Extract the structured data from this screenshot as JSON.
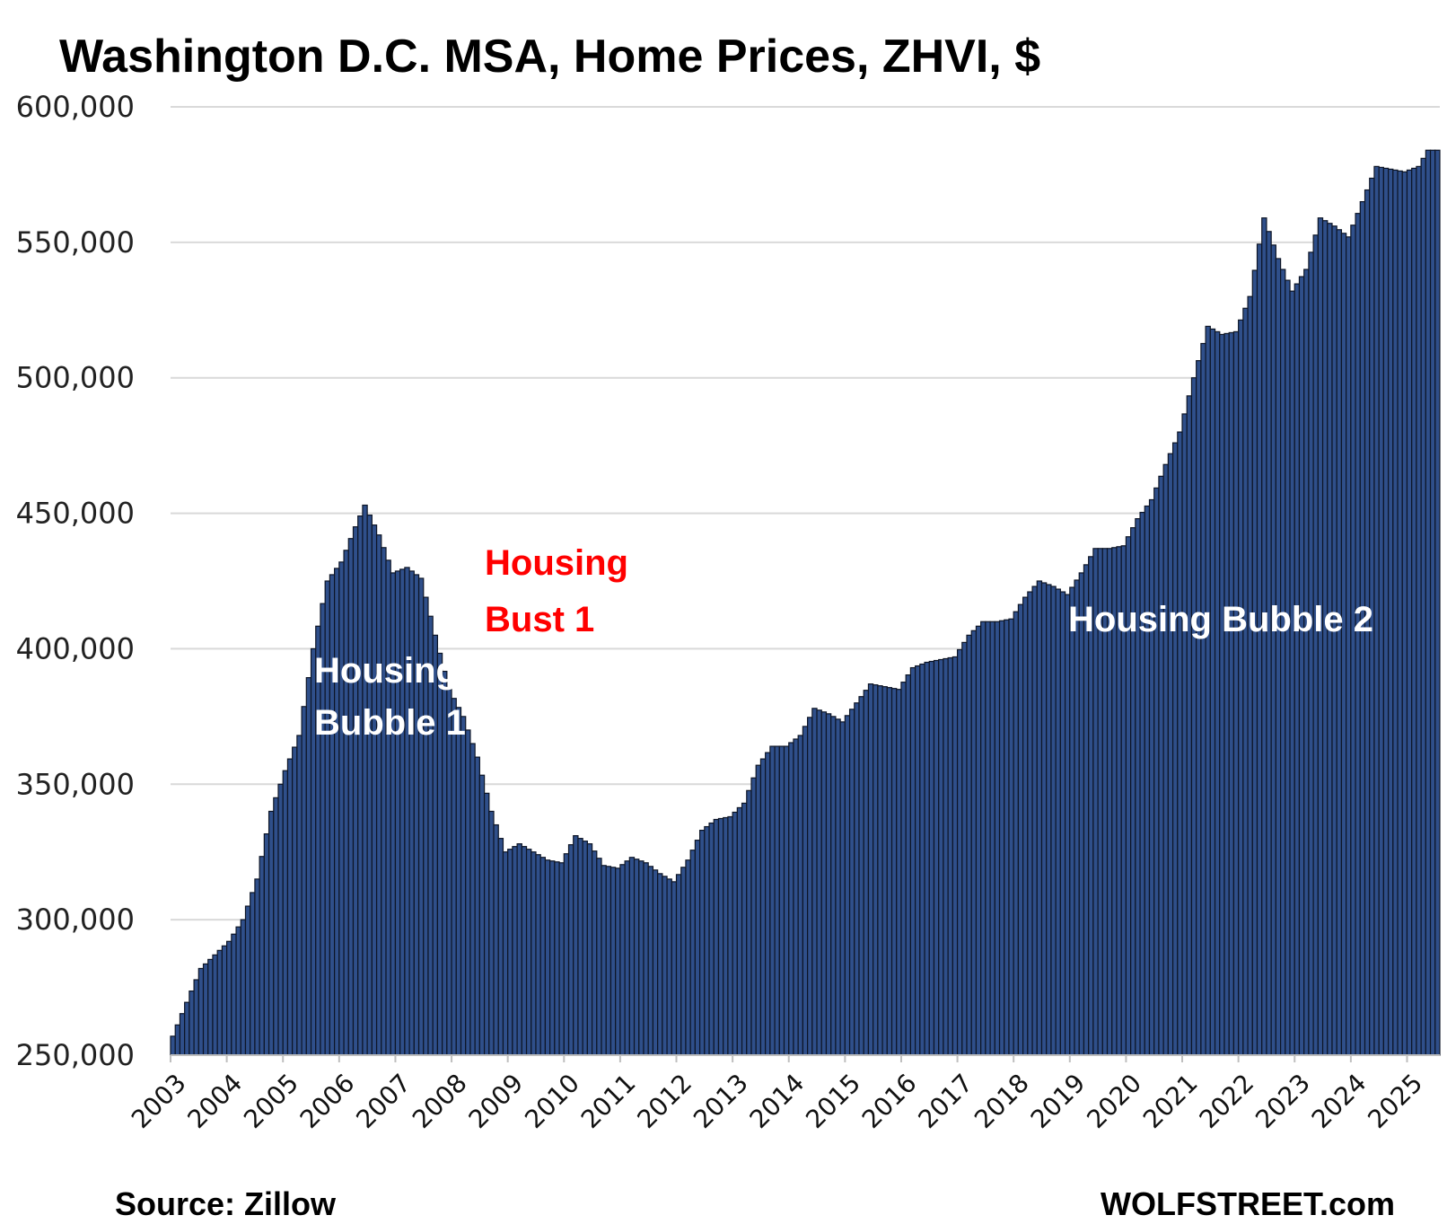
{
  "chart_data": {
    "type": "bar",
    "title": "Washington D.C. MSA, Home Prices, ZHVI, $",
    "ylim": [
      250000,
      600000
    ],
    "y_ticks": [
      250000,
      300000,
      350000,
      400000,
      450000,
      500000,
      550000,
      600000
    ],
    "y_tick_labels": [
      "250,000",
      "300,000",
      "350,000",
      "400,000",
      "450,000",
      "500,000",
      "550,000",
      "600,000"
    ],
    "x_tick_labels": [
      "2003",
      "2004",
      "2005",
      "2006",
      "2007",
      "2008",
      "2009",
      "2010",
      "2011",
      "2012",
      "2013",
      "2014",
      "2015",
      "2016",
      "2017",
      "2018",
      "2019",
      "2020",
      "2021",
      "2022",
      "2023",
      "2024",
      "2025"
    ],
    "grid": true,
    "bar_color": "#2f4f8a",
    "frequency": "monthly",
    "start": "2003-01",
    "end": "2025-07",
    "anchors": [
      [
        "2003-01",
        257000
      ],
      [
        "2003-07",
        282000
      ],
      [
        "2004-01",
        292000
      ],
      [
        "2004-04",
        300000
      ],
      [
        "2004-07",
        315000
      ],
      [
        "2004-10",
        340000
      ],
      [
        "2005-01",
        355000
      ],
      [
        "2005-04",
        368000
      ],
      [
        "2005-07",
        400000
      ],
      [
        "2005-10",
        425000
      ],
      [
        "2006-01",
        432000
      ],
      [
        "2006-04",
        445000
      ],
      [
        "2006-06",
        453000
      ],
      [
        "2006-09",
        442000
      ],
      [
        "2006-12",
        428000
      ],
      [
        "2007-03",
        430000
      ],
      [
        "2007-06",
        426000
      ],
      [
        "2007-09",
        405000
      ],
      [
        "2007-12",
        385000
      ],
      [
        "2008-03",
        375000
      ],
      [
        "2008-06",
        360000
      ],
      [
        "2008-09",
        340000
      ],
      [
        "2008-12",
        325000
      ],
      [
        "2009-03",
        328000
      ],
      [
        "2009-06",
        325000
      ],
      [
        "2009-09",
        322000
      ],
      [
        "2009-12",
        321000
      ],
      [
        "2010-03",
        331000
      ],
      [
        "2010-06",
        328000
      ],
      [
        "2010-09",
        320000
      ],
      [
        "2010-12",
        319000
      ],
      [
        "2011-03",
        323000
      ],
      [
        "2011-06",
        321000
      ],
      [
        "2011-09",
        317000
      ],
      [
        "2011-12",
        314000
      ],
      [
        "2012-03",
        322000
      ],
      [
        "2012-06",
        333000
      ],
      [
        "2012-09",
        337000
      ],
      [
        "2012-12",
        338000
      ],
      [
        "2013-03",
        343000
      ],
      [
        "2013-06",
        357000
      ],
      [
        "2013-09",
        364000
      ],
      [
        "2013-12",
        364000
      ],
      [
        "2014-03",
        368000
      ],
      [
        "2014-06",
        378000
      ],
      [
        "2014-09",
        376000
      ],
      [
        "2014-12",
        373000
      ],
      [
        "2015-03",
        380000
      ],
      [
        "2015-06",
        387000
      ],
      [
        "2015-09",
        386000
      ],
      [
        "2015-12",
        385000
      ],
      [
        "2016-03",
        393000
      ],
      [
        "2016-06",
        395000
      ],
      [
        "2016-09",
        396000
      ],
      [
        "2016-12",
        397000
      ],
      [
        "2017-03",
        405000
      ],
      [
        "2017-06",
        410000
      ],
      [
        "2017-09",
        410000
      ],
      [
        "2017-12",
        411000
      ],
      [
        "2018-03",
        419000
      ],
      [
        "2018-06",
        425000
      ],
      [
        "2018-09",
        423000
      ],
      [
        "2018-12",
        420000
      ],
      [
        "2019-03",
        428000
      ],
      [
        "2019-06",
        437000
      ],
      [
        "2019-09",
        437000
      ],
      [
        "2019-12",
        438000
      ],
      [
        "2020-03",
        448000
      ],
      [
        "2020-06",
        455000
      ],
      [
        "2020-09",
        468000
      ],
      [
        "2020-12",
        480000
      ],
      [
        "2021-03",
        500000
      ],
      [
        "2021-06",
        519000
      ],
      [
        "2021-09",
        516000
      ],
      [
        "2021-12",
        517000
      ],
      [
        "2022-03",
        530000
      ],
      [
        "2022-06",
        559000
      ],
      [
        "2022-09",
        544000
      ],
      [
        "2022-12",
        532000
      ],
      [
        "2023-03",
        540000
      ],
      [
        "2023-06",
        559000
      ],
      [
        "2023-09",
        556000
      ],
      [
        "2023-12",
        552000
      ],
      [
        "2024-03",
        565000
      ],
      [
        "2024-06",
        578000
      ],
      [
        "2024-09",
        577000
      ],
      [
        "2024-12",
        576000
      ],
      [
        "2025-03",
        578000
      ],
      [
        "2025-05",
        584000
      ],
      [
        "2025-07",
        584000
      ]
    ],
    "annotations": [
      {
        "text_lines": [
          "Housing",
          "Bubble 1"
        ],
        "color": "#ffffff"
      },
      {
        "text_lines": [
          "Housing",
          "Bust 1"
        ],
        "color": "#ff0000"
      },
      {
        "text_lines": [
          "Housing Bubble 2"
        ],
        "color": "#ffffff"
      }
    ]
  },
  "footer": {
    "source": "Source: Zillow",
    "brand": "WOLFSTREET.com"
  }
}
